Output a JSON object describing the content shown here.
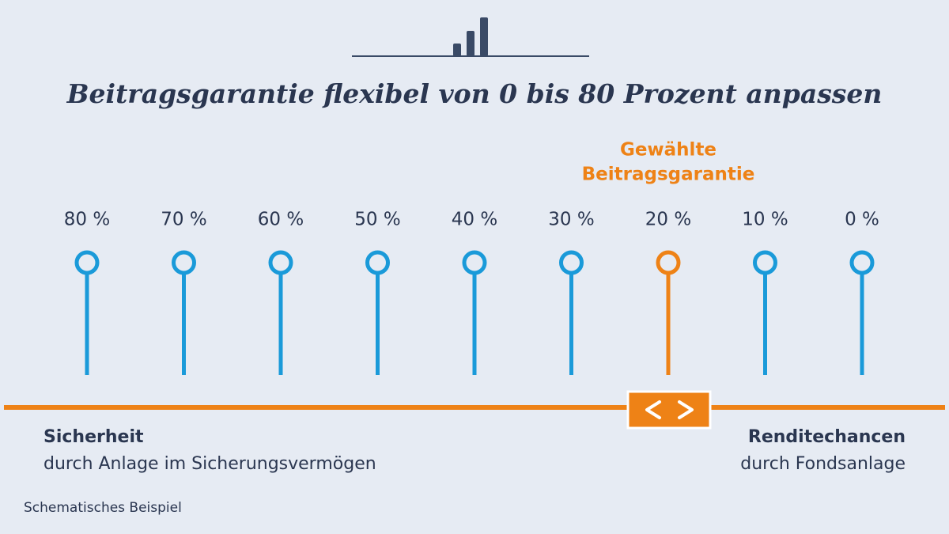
{
  "title": "Beitragsgarantie flexibel von 0 bis 80 Prozent anpassen",
  "selected_label": [
    "Gewählte",
    "Beitragsgarantie"
  ],
  "options": [
    {
      "label": "80 %",
      "color": "#1a9ad9"
    },
    {
      "label": "70 %",
      "color": "#1a9ad9"
    },
    {
      "label": "60 %",
      "color": "#1a9ad9"
    },
    {
      "label": "50 %",
      "color": "#1a9ad9"
    },
    {
      "label": "40 %",
      "color": "#1a9ad9"
    },
    {
      "label": "30 %",
      "color": "#1a9ad9"
    },
    {
      "label": "20 %",
      "color": "#ee8216"
    },
    {
      "label": "10 %",
      "color": "#1a9ad9"
    },
    {
      "label": "0 %",
      "color": "#1a9ad9"
    }
  ],
  "left": {
    "heading": "Sicherheit",
    "text": "durch Anlage im Sicherungsvermögen"
  },
  "right": {
    "heading": "Renditechancen",
    "text": "durch Fondsanlage"
  },
  "footnote": "Schematisches Beispiel"
}
